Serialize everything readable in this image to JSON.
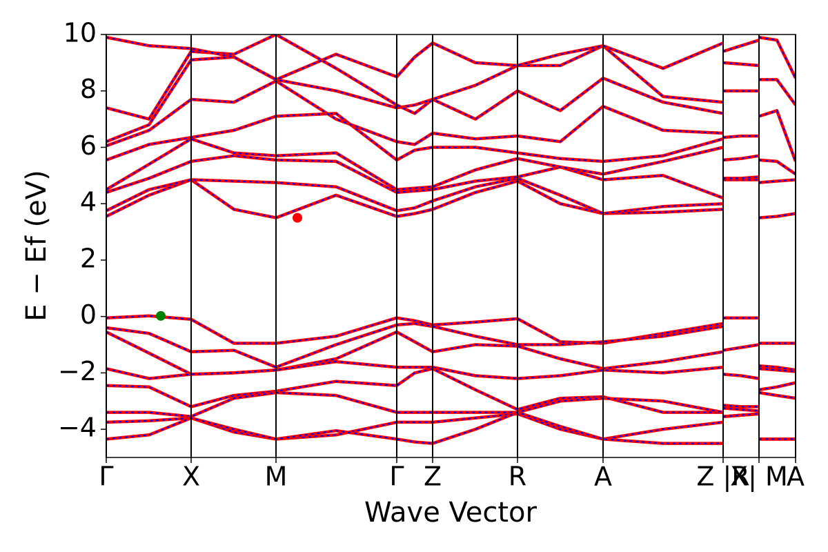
{
  "chart_data": {
    "type": "line",
    "xlabel": "Wave Vector",
    "ylabel": "E − Ef (eV)",
    "line_color": "red",
    "dash_color": "blue",
    "xlim": [
      0,
      9.99
    ],
    "ylim": [
      -5,
      10
    ],
    "xticks": [
      {
        "value": 0,
        "label": "Γ"
      },
      {
        "value": 1.23,
        "label": "X"
      },
      {
        "value": 2.46,
        "label": "M"
      },
      {
        "value": 4.21,
        "label": "Γ"
      },
      {
        "value": 4.73,
        "label": "Z"
      },
      {
        "value": 5.96,
        "label": "R"
      },
      {
        "value": 7.2,
        "label": "A"
      },
      {
        "value": 8.94,
        "label": "Z |R"
      },
      {
        "value": 9.46,
        "label": "X| M"
      },
      {
        "value": 9.99,
        "label": "A"
      }
    ],
    "yticks": [
      {
        "value": -4,
        "label": "−4"
      },
      {
        "value": -2,
        "label": "−2"
      },
      0,
      2,
      4,
      6,
      8,
      10
    ],
    "x": [
      0,
      0.62,
      1.23,
      1.85,
      2.46,
      3.33,
      4.21,
      4.47,
      4.73,
      5.35,
      5.96,
      6.58,
      7.2,
      8.07,
      8.94,
      8.94,
      8.94,
      9.2,
      9.46,
      9.46,
      9.46,
      9.72,
      9.99
    ],
    "series": [
      {
        "values": [
          -0.05,
          0.02,
          -0.1,
          -0.95,
          -0.95,
          -0.7,
          -0.05,
          -0.15,
          -0.3,
          -0.2,
          -0.08,
          -0.9,
          -0.95,
          -0.6,
          -0.25,
          null,
          -0.05,
          -0.05,
          -0.05,
          null,
          -0.95,
          -0.95,
          -0.95
        ]
      },
      {
        "values": [
          -0.4,
          -0.6,
          -1.25,
          -1.2,
          -1.8,
          -1.0,
          -0.3,
          -0.25,
          -0.35,
          -0.7,
          -1.0,
          -1.0,
          -0.9,
          -0.7,
          -0.35,
          null,
          -1.2,
          -1.1,
          -1.0,
          null,
          -1.75,
          -1.8,
          -1.9
        ]
      },
      {
        "values": [
          -0.55,
          -1.3,
          -2.05,
          -2.0,
          -1.9,
          -1.5,
          -0.55,
          -0.9,
          -1.25,
          -1.0,
          -1.05,
          -1.5,
          -1.85,
          -1.6,
          -1.25,
          null,
          -2.05,
          -2.1,
          -2.2,
          null,
          -1.85,
          -1.9,
          -1.95
        ]
      },
      {
        "values": [
          -1.85,
          -2.2,
          -2.05,
          -2.0,
          -1.9,
          -1.6,
          -1.8,
          -1.8,
          -1.8,
          -2.1,
          -2.2,
          -2.1,
          -1.9,
          -2.0,
          -1.8,
          null,
          -3.15,
          -3.2,
          -3.2,
          null,
          -2.6,
          -2.5,
          -2.35
        ]
      },
      {
        "values": [
          -2.45,
          -2.5,
          -3.2,
          -2.8,
          -2.65,
          -2.3,
          -2.45,
          -2.0,
          -1.85,
          -2.6,
          -3.3,
          -2.9,
          -2.85,
          -3.4,
          -3.4,
          null,
          -3.25,
          -3.3,
          -3.35,
          null,
          -2.7,
          -2.8,
          -2.9
        ]
      },
      {
        "values": [
          -3.4,
          -3.4,
          -3.55,
          -2.9,
          -2.7,
          -2.8,
          -3.4,
          -3.4,
          -3.4,
          -3.4,
          -3.4,
          -3.0,
          -2.9,
          -3.0,
          -3.4,
          null,
          -3.55,
          -3.5,
          -3.45,
          null,
          -4.35,
          -4.35,
          -4.35
        ]
      },
      {
        "values": [
          -3.75,
          -3.7,
          -3.6,
          -4.1,
          -4.35,
          -4.2,
          -3.75,
          -3.75,
          -3.75,
          -3.6,
          -3.45,
          -4.0,
          -4.35,
          -4.0,
          -3.75,
          null,
          -3.55,
          -3.5,
          -3.45,
          null,
          -4.35,
          -4.35,
          -4.35
        ]
      },
      {
        "values": [
          -4.35,
          -4.2,
          -3.6,
          -4.0,
          -4.35,
          -4.05,
          -4.35,
          -4.45,
          -4.5,
          -4.0,
          -3.4,
          -3.9,
          -4.35,
          -4.5,
          -4.5,
          null,
          -3.55,
          -3.5,
          -3.45,
          null,
          -4.35,
          -4.35,
          -4.35
        ]
      },
      {
        "values": [
          3.55,
          4.3,
          4.85,
          3.8,
          3.5,
          4.3,
          3.55,
          3.65,
          3.8,
          4.4,
          4.8,
          4.0,
          3.65,
          3.7,
          3.8,
          null,
          4.85,
          4.85,
          4.85,
          null,
          3.5,
          3.55,
          3.65
        ]
      },
      {
        "values": [
          3.75,
          4.5,
          4.85,
          4.8,
          4.75,
          4.6,
          3.75,
          3.85,
          4.1,
          4.6,
          4.9,
          4.3,
          3.65,
          3.9,
          4.0,
          null,
          4.9,
          4.9,
          4.95,
          null,
          4.75,
          4.8,
          4.85
        ]
      },
      {
        "values": [
          4.4,
          4.9,
          5.5,
          5.7,
          5.55,
          5.5,
          4.4,
          4.45,
          4.5,
          4.8,
          4.95,
          5.3,
          4.85,
          5.0,
          4.2,
          null,
          5.55,
          5.6,
          5.7,
          null,
          5.55,
          5.5,
          5.05
        ]
      },
      {
        "values": [
          4.5,
          5.4,
          6.3,
          5.8,
          5.7,
          5.8,
          4.5,
          4.55,
          4.6,
          5.2,
          5.6,
          5.3,
          5.05,
          5.5,
          6.0,
          null,
          6.35,
          6.4,
          6.4,
          null,
          7.1,
          7.3,
          5.5
        ]
      },
      {
        "values": [
          5.55,
          6.1,
          6.35,
          6.6,
          7.1,
          7.2,
          5.55,
          5.9,
          6.0,
          6.0,
          5.8,
          5.6,
          5.5,
          5.7,
          6.3,
          null,
          8.0,
          8.0,
          8.0,
          null,
          8.4,
          8.4,
          7.5
        ]
      },
      {
        "values": [
          6.05,
          6.6,
          7.7,
          7.6,
          8.35,
          7.0,
          6.2,
          6.1,
          6.5,
          6.3,
          6.4,
          6.2,
          7.45,
          6.6,
          6.5,
          null,
          9.4,
          9.6,
          9.8,
          null,
          9.9,
          9.8,
          8.45
        ]
      },
      {
        "values": [
          6.2,
          6.8,
          9.1,
          9.2,
          8.4,
          8.0,
          7.4,
          7.5,
          7.7,
          7.0,
          8.0,
          7.3,
          8.45,
          7.6,
          7.2,
          null,
          9.0,
          8.95,
          8.9,
          null,
          null,
          null,
          9.6
        ]
      },
      {
        "values": [
          7.4,
          7.0,
          9.4,
          9.3,
          10.0,
          8.8,
          7.5,
          7.2,
          7.7,
          8.2,
          8.9,
          8.9,
          9.6,
          7.8,
          7.6,
          null,
          null,
          null,
          null,
          null,
          null,
          null,
          null
        ]
      },
      {
        "values": [
          9.9,
          9.6,
          9.5,
          9.2,
          8.4,
          9.3,
          8.5,
          9.2,
          9.7,
          9.0,
          8.9,
          9.3,
          9.6,
          8.8,
          9.7,
          null,
          null,
          null,
          null,
          null,
          null,
          null,
          null
        ]
      }
    ],
    "markers": [
      {
        "x": 0.79,
        "y": 0.02,
        "color": "green"
      },
      {
        "x": 2.77,
        "y": 3.5,
        "color": "red"
      }
    ]
  }
}
